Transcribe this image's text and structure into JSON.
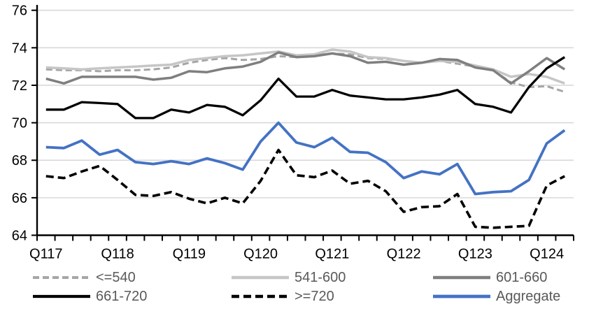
{
  "chart_data": {
    "type": "line",
    "title": "",
    "xlabel": "",
    "ylabel": "",
    "grid": true,
    "legend_position": "bottom",
    "axis_color": "#000000",
    "gridline_color": "#d9d9d9",
    "label_color": "#000000",
    "legend_text_color": "#595959",
    "x_axis": {
      "tick_labels": [
        "Q117",
        "Q118",
        "Q119",
        "Q120",
        "Q121",
        "Q122",
        "Q123",
        "Q124"
      ],
      "points_per_year": 4,
      "num_points": 30
    },
    "y_axis": {
      "min": 64,
      "max": 76,
      "step": 2,
      "tick_labels": [
        "76",
        "74",
        "72",
        "70",
        "68",
        "66",
        "64"
      ]
    },
    "series": [
      {
        "name": "<=540",
        "color": "#a6a6a6",
        "line_style": "dashed",
        "stroke_width": 3,
        "dash": "9,5",
        "values": [
          72.85,
          72.8,
          72.8,
          72.75,
          72.8,
          72.8,
          72.85,
          72.95,
          73.2,
          73.35,
          73.45,
          73.35,
          73.4,
          73.55,
          73.5,
          73.6,
          73.7,
          73.65,
          73.45,
          73.4,
          73.3,
          73.2,
          73.3,
          73.15,
          73.0,
          72.8,
          72.15,
          71.9,
          71.95,
          71.65
        ]
      },
      {
        "name": "541-600",
        "color": "#c6c6c6",
        "line_style": "solid",
        "stroke_width": 3.5,
        "dash": "",
        "values": [
          72.95,
          72.9,
          72.85,
          72.9,
          72.95,
          73.0,
          73.05,
          73.1,
          73.35,
          73.45,
          73.55,
          73.6,
          73.7,
          73.8,
          73.6,
          73.65,
          73.9,
          73.8,
          73.5,
          73.45,
          73.3,
          73.2,
          73.3,
          73.25,
          73.05,
          72.85,
          72.45,
          72.6,
          72.45,
          72.1
        ]
      },
      {
        "name": "601-660",
        "color": "#7f7f7f",
        "line_style": "solid",
        "stroke_width": 3.5,
        "dash": "",
        "values": [
          72.35,
          72.1,
          72.45,
          72.45,
          72.45,
          72.45,
          72.3,
          72.4,
          72.75,
          72.7,
          72.9,
          73.0,
          73.25,
          73.75,
          73.5,
          73.55,
          73.7,
          73.55,
          73.2,
          73.25,
          73.1,
          73.2,
          73.4,
          73.35,
          72.95,
          72.8,
          72.1,
          72.75,
          73.45,
          72.85
        ]
      },
      {
        "name": "661-720",
        "color": "#000000",
        "line_style": "solid",
        "stroke_width": 3.3,
        "dash": "",
        "values": [
          70.7,
          70.7,
          71.1,
          71.05,
          71.0,
          70.25,
          70.25,
          70.7,
          70.55,
          70.95,
          70.85,
          70.4,
          71.2,
          72.35,
          71.4,
          71.4,
          71.75,
          71.45,
          71.35,
          71.25,
          71.25,
          71.35,
          71.5,
          71.75,
          71.0,
          70.85,
          70.55,
          71.9,
          72.9,
          73.5
        ]
      },
      {
        "name": ">=720",
        "color": "#000000",
        "line_style": "dashed",
        "stroke_width": 3.6,
        "dash": "11,6",
        "values": [
          67.15,
          67.05,
          67.4,
          67.7,
          66.95,
          66.15,
          66.1,
          66.3,
          65.95,
          65.7,
          66.0,
          65.7,
          66.9,
          68.55,
          67.2,
          67.1,
          67.45,
          66.75,
          66.9,
          66.35,
          65.25,
          65.5,
          65.55,
          66.2,
          64.45,
          64.4,
          64.45,
          64.5,
          66.65,
          67.15
        ]
      },
      {
        "name": "Aggregate",
        "color": "#4472c4",
        "line_style": "solid",
        "stroke_width": 3.8,
        "dash": "",
        "values": [
          68.7,
          68.65,
          69.05,
          68.3,
          68.55,
          67.9,
          67.8,
          67.95,
          67.8,
          68.1,
          67.85,
          67.5,
          69.0,
          70.0,
          68.95,
          68.7,
          69.2,
          68.45,
          68.4,
          67.9,
          67.05,
          67.4,
          67.25,
          67.8,
          66.2,
          66.3,
          66.35,
          66.95,
          68.9,
          69.6
        ]
      }
    ]
  }
}
